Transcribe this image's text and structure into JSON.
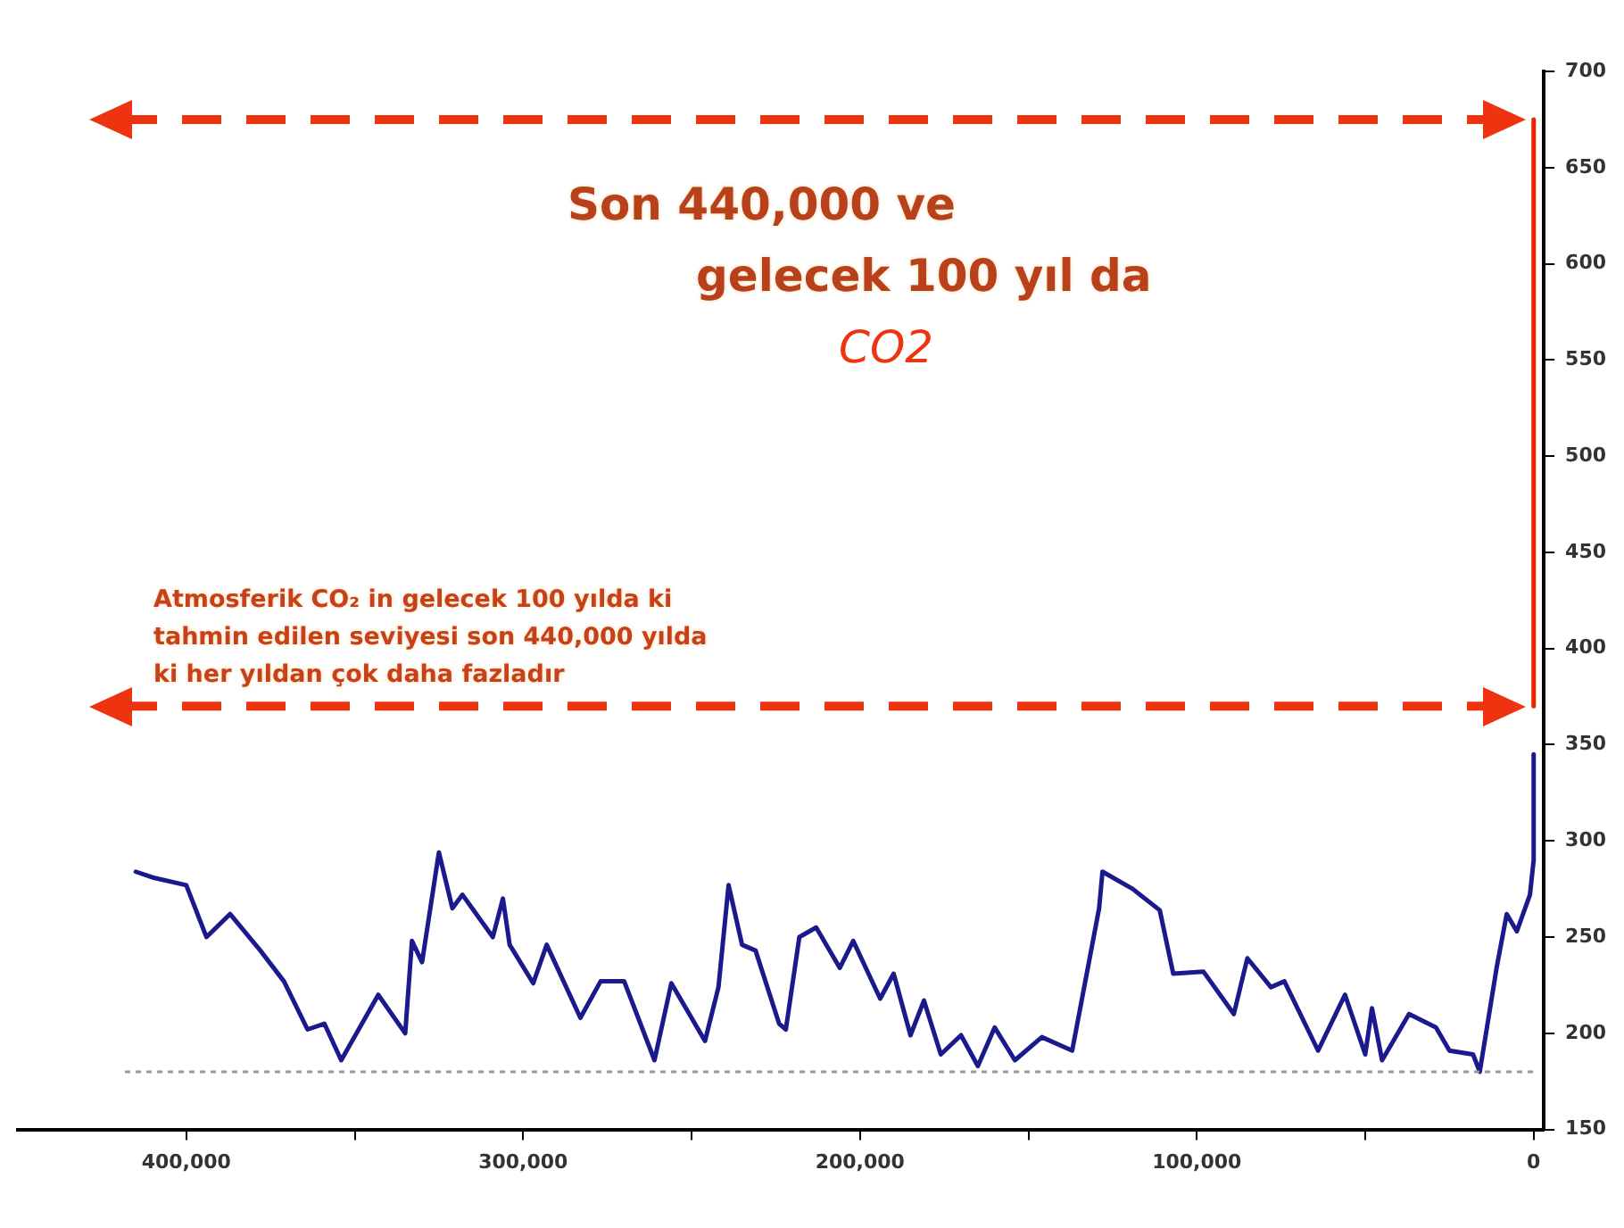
{
  "chart_data": {
    "type": "line",
    "title": "Son 440,000 ve\ngelecek 100 yıl da\nCO2",
    "annotations": [
      "Atmosferik CO₂ in gelecek 100 yılda ki\ntahmin edilen seviyesi son 440,000 yılda\nki her yıldan çok daha fazladır"
    ],
    "series": [
      {
        "color": "#1a1a8c",
        "x": [
          415000,
          410000,
          400000,
          394000,
          387000,
          378000,
          371000,
          364000,
          359000,
          354000,
          343000,
          335000,
          333000,
          330000,
          325000,
          321000,
          318000,
          309000,
          306000,
          304000,
          297000,
          293000,
          283000,
          277000,
          270000,
          261000,
          256000,
          246000,
          242000,
          239000,
          235000,
          231000,
          224000,
          222000,
          218000,
          213000,
          206000,
          202000,
          194000,
          190000,
          185000,
          181000,
          176000,
          170000,
          165000,
          160000,
          154000,
          146000,
          137000,
          129000,
          128000,
          119000,
          111000,
          107000,
          98000,
          89000,
          85000,
          78000,
          74000,
          64000,
          56000,
          50000,
          48000,
          45000,
          37000,
          29000,
          25000,
          18000,
          16000,
          11000,
          8000,
          5000,
          1100,
          0,
          0
        ],
        "values": [
          284,
          281,
          277,
          250,
          262,
          243,
          227,
          202,
          205,
          186,
          220,
          200,
          248,
          237,
          294,
          265,
          272,
          250,
          270,
          246,
          226,
          246,
          208,
          227,
          227,
          186,
          226,
          196,
          224,
          277,
          246,
          243,
          205,
          202,
          250,
          255,
          234,
          248,
          218,
          231,
          199,
          217,
          189,
          199,
          183,
          203,
          186,
          198,
          191,
          265,
          284,
          275,
          264,
          231,
          232,
          210,
          239,
          224,
          227,
          191,
          220,
          189,
          213,
          186,
          210,
          203,
          191,
          189,
          180,
          234,
          262,
          253,
          272,
          290,
          345
        ]
      },
      {
        "type": "line",
        "color": "#ee2200",
        "x": [
          0,
          0
        ],
        "values": [
          370,
          675
        ]
      }
    ],
    "xlim": [
      450000,
      -3000
    ],
    "xticks": [
      {
        "value": 400000,
        "label": "400,000"
      },
      {
        "value": 350000,
        "label": null
      },
      {
        "value": 300000,
        "label": "300,000"
      },
      {
        "value": 250000,
        "label": null
      },
      {
        "value": 200000,
        "label": "200,000"
      },
      {
        "value": 150000,
        "label": null
      },
      {
        "value": 100000,
        "label": "100,000"
      },
      {
        "value": 50000,
        "label": null
      },
      0
    ],
    "ylim": [
      150,
      700
    ],
    "yticks": [
      150,
      200,
      250,
      300,
      350,
      400,
      450,
      500,
      550,
      600,
      650,
      700
    ],
    "ref_lines": [
      {
        "axis": "y",
        "value": 675,
        "color": "#ee3311",
        "line_style": "dashed"
      },
      {
        "axis": "y",
        "value": 370,
        "color": "#ee3311",
        "line_style": "dashed"
      },
      {
        "axis": "y",
        "value": 180,
        "color": "#999999",
        "line_style": "dotted"
      }
    ],
    "grid": false,
    "legend": false,
    "marker": "none",
    "line_style": "solid"
  }
}
